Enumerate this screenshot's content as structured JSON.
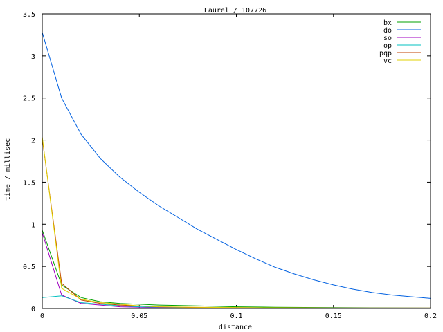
{
  "chart_data": {
    "type": "line",
    "title": "Laurel / 107726",
    "xlabel": "distance",
    "ylabel": "time / millisec",
    "xlim": [
      0,
      0.2
    ],
    "ylim": [
      0,
      3.5
    ],
    "x_ticks": [
      "0",
      "0.05",
      "0.1",
      "0.15",
      "0.2"
    ],
    "y_ticks": [
      "0",
      "0.5",
      "1",
      "1.5",
      "2",
      "2.5",
      "3",
      "3.5"
    ],
    "x_tick_values": [
      0,
      0.05,
      0.1,
      0.15,
      0.2
    ],
    "y_tick_values": [
      0,
      0.5,
      1,
      1.5,
      2,
      2.5,
      3,
      3.5
    ],
    "grid": false,
    "legend_position": "top-right",
    "series": [
      {
        "name": "bx",
        "color": "#00a000",
        "x": [
          0,
          0.01,
          0.02,
          0.03,
          0.04,
          0.05,
          0.06,
          0.08,
          0.1,
          0.12,
          0.15,
          0.2
        ],
        "y": [
          0.93,
          0.28,
          0.13,
          0.08,
          0.06,
          0.05,
          0.04,
          0.03,
          0.02,
          0.015,
          0.01,
          0.005
        ]
      },
      {
        "name": "do",
        "color": "#0060e0",
        "x": [
          0,
          0.01,
          0.02,
          0.03,
          0.04,
          0.05,
          0.06,
          0.07,
          0.08,
          0.09,
          0.1,
          0.11,
          0.12,
          0.13,
          0.14,
          0.15,
          0.16,
          0.17,
          0.18,
          0.19,
          0.2
        ],
        "y": [
          3.28,
          2.5,
          2.07,
          1.78,
          1.56,
          1.38,
          1.22,
          1.08,
          0.94,
          0.82,
          0.7,
          0.59,
          0.49,
          0.41,
          0.34,
          0.28,
          0.23,
          0.19,
          0.16,
          0.14,
          0.12
        ]
      },
      {
        "name": "so",
        "color": "#a000c0",
        "x": [
          0,
          0.01,
          0.02,
          0.03,
          0.04,
          0.05,
          0.06,
          0.08,
          0.1,
          0.15,
          0.2
        ],
        "y": [
          0.9,
          0.16,
          0.06,
          0.04,
          0.02,
          0.015,
          0.01,
          0.01,
          0.005,
          0.005,
          0.005
        ]
      },
      {
        "name": "op",
        "color": "#00c0c0",
        "x": [
          0,
          0.01,
          0.02,
          0.03,
          0.04,
          0.05,
          0.08,
          0.1,
          0.15,
          0.2
        ],
        "y": [
          0.13,
          0.15,
          0.07,
          0.05,
          0.03,
          0.02,
          0.01,
          0.01,
          0.005,
          0.005
        ]
      },
      {
        "name": "pqp",
        "color": "#c04000",
        "x": [
          0,
          0.01,
          0.02,
          0.03,
          0.04,
          0.05,
          0.06,
          0.08,
          0.1,
          0.15,
          0.2
        ],
        "y": [
          2.02,
          0.3,
          0.1,
          0.06,
          0.04,
          0.03,
          0.02,
          0.01,
          0.01,
          0.005,
          0.005
        ]
      },
      {
        "name": "vc",
        "color": "#e0d000",
        "x": [
          0,
          0.01,
          0.02,
          0.03,
          0.04,
          0.05,
          0.06,
          0.08,
          0.1,
          0.15,
          0.2
        ],
        "y": [
          2.04,
          0.24,
          0.11,
          0.07,
          0.05,
          0.03,
          0.02,
          0.015,
          0.01,
          0.005,
          0.005
        ]
      }
    ]
  }
}
